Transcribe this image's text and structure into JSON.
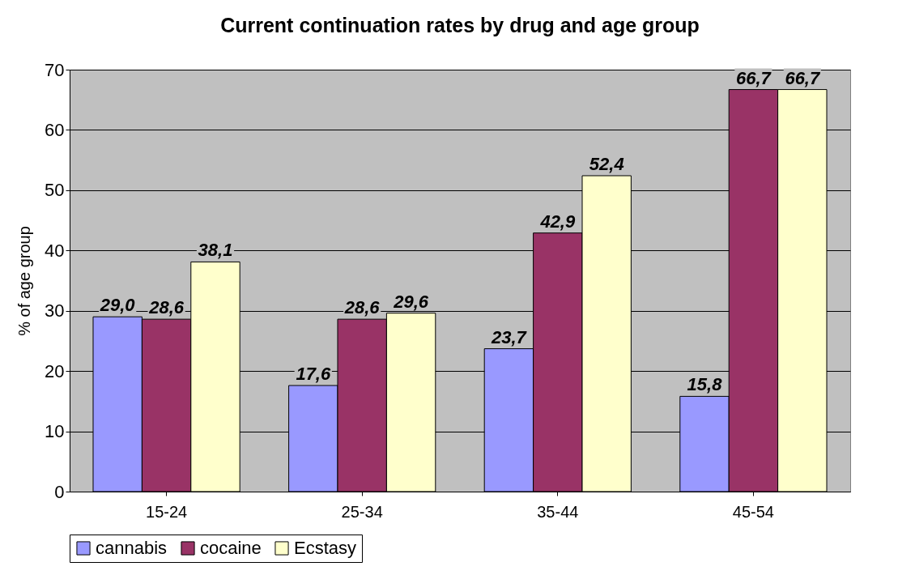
{
  "chart_data": {
    "type": "bar",
    "title": "Current continuation rates by drug and age group",
    "ylabel": "% of age group",
    "categories": [
      "15-24",
      "25-34",
      "35-44",
      "45-54"
    ],
    "series": [
      {
        "name": "cannabis",
        "color": "#9999ff",
        "values": [
          29.0,
          17.6,
          23.7,
          15.8
        ],
        "value_labels": [
          "29,0",
          "17,6",
          "23,7",
          "15,8"
        ]
      },
      {
        "name": "cocaine",
        "color": "#993366",
        "values": [
          28.6,
          28.6,
          42.9,
          66.7
        ],
        "value_labels": [
          "28,6",
          "28,6",
          "42,9",
          "66,7"
        ]
      },
      {
        "name": "Ecstasy",
        "color": "#ffffcc",
        "values": [
          38.1,
          29.6,
          52.4,
          66.7
        ],
        "value_labels": [
          "38,1",
          "29,6",
          "52,4",
          "66,7"
        ]
      }
    ],
    "ylim": [
      0,
      70
    ],
    "yticks": [
      0,
      10,
      20,
      30,
      40,
      50,
      60,
      70
    ],
    "grid": "y",
    "legend": "bottom"
  }
}
